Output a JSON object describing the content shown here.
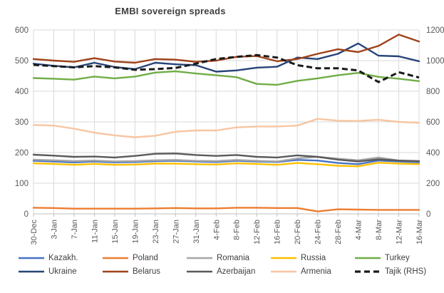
{
  "chart_data": {
    "type": "line",
    "title": "EMBI sovereign spreads",
    "x": [
      "30-Dec",
      "3-Jan",
      "7-Jan",
      "11-Jan",
      "15-Jan",
      "19-Jan",
      "23-Jan",
      "27-Jan",
      "31-Jan",
      "4-Feb",
      "8-Feb",
      "12-Feb",
      "16-Feb",
      "20-Feb",
      "24-Feb",
      "28-Feb",
      "4-Mar",
      "8-Mar",
      "12-Mar",
      "16-Mar"
    ],
    "left_axis": {
      "range": [
        0,
        600
      ],
      "ticks": [
        0,
        100,
        200,
        300,
        400,
        500,
        600
      ]
    },
    "right_axis": {
      "range": [
        0,
        1200
      ],
      "ticks": [
        0,
        200,
        400,
        600,
        800,
        1000,
        1200
      ]
    },
    "grid": true,
    "legend_position": "bottom",
    "series": [
      {
        "name": "Kazakh.",
        "color": "#4472C4",
        "axis": "left",
        "dashed": false,
        "values": [
          173,
          171,
          168,
          171,
          168,
          169,
          172,
          173,
          171,
          169,
          173,
          171,
          169,
          176,
          174,
          166,
          162,
          174,
          171,
          168
        ]
      },
      {
        "name": "Poland",
        "color": "#ED7D31",
        "axis": "left",
        "dashed": false,
        "values": [
          20,
          19,
          17,
          17,
          17,
          17,
          18,
          19,
          18,
          18,
          20,
          20,
          19,
          19,
          8,
          15,
          14,
          13,
          13,
          13
        ]
      },
      {
        "name": "Romania",
        "color": "#A6A6A6",
        "axis": "left",
        "dashed": false,
        "values": [
          177,
          175,
          172,
          174,
          171,
          172,
          175,
          176,
          173,
          172,
          176,
          173,
          171,
          181,
          186,
          180,
          175,
          184,
          174,
          171
        ]
      },
      {
        "name": "Russia",
        "color": "#FFC000",
        "axis": "left",
        "dashed": false,
        "values": [
          165,
          163,
          160,
          163,
          160,
          161,
          164,
          164,
          162,
          161,
          165,
          163,
          160,
          166,
          162,
          157,
          155,
          167,
          164,
          162
        ]
      },
      {
        "name": "Turkey",
        "color": "#70AD47",
        "axis": "left",
        "dashed": false,
        "values": [
          443,
          441,
          438,
          448,
          442,
          448,
          461,
          465,
          458,
          452,
          446,
          424,
          421,
          434,
          442,
          452,
          460,
          447,
          441,
          433
        ]
      },
      {
        "name": "Ukraine",
        "color": "#264478",
        "axis": "left",
        "dashed": false,
        "values": [
          490,
          483,
          478,
          493,
          479,
          472,
          493,
          488,
          485,
          464,
          468,
          477,
          480,
          510,
          505,
          522,
          556,
          516,
          514,
          498
        ]
      },
      {
        "name": "Belarus",
        "color": "#A0421A",
        "axis": "left",
        "dashed": false,
        "values": [
          505,
          500,
          496,
          508,
          497,
          493,
          505,
          503,
          496,
          500,
          512,
          515,
          498,
          505,
          522,
          537,
          528,
          548,
          585,
          562
        ]
      },
      {
        "name": "Azerbaijan",
        "color": "#5A5A5A",
        "axis": "left",
        "dashed": false,
        "values": [
          193,
          190,
          186,
          187,
          184,
          189,
          196,
          197,
          192,
          189,
          192,
          186,
          184,
          191,
          186,
          177,
          171,
          178,
          174,
          172
        ]
      },
      {
        "name": "Armenia",
        "color": "#F8C5A2",
        "axis": "left",
        "dashed": false,
        "values": [
          290,
          288,
          278,
          265,
          256,
          250,
          255,
          268,
          272,
          272,
          282,
          285,
          285,
          288,
          310,
          304,
          303,
          307,
          300,
          297
        ]
      },
      {
        "name": "Tajik (RHS)",
        "color": "#1A1A1A",
        "axis": "right",
        "dashed": true,
        "values": [
          972,
          964,
          956,
          964,
          956,
          940,
          944,
          952,
          980,
          1010,
          1024,
          1036,
          1020,
          970,
          950,
          950,
          936,
          860,
          924,
          890
        ]
      }
    ],
    "colors": {
      "gridline": "#D9D9D9",
      "axis_line": "#BFBFBF",
      "tick_text": "#595959"
    }
  }
}
